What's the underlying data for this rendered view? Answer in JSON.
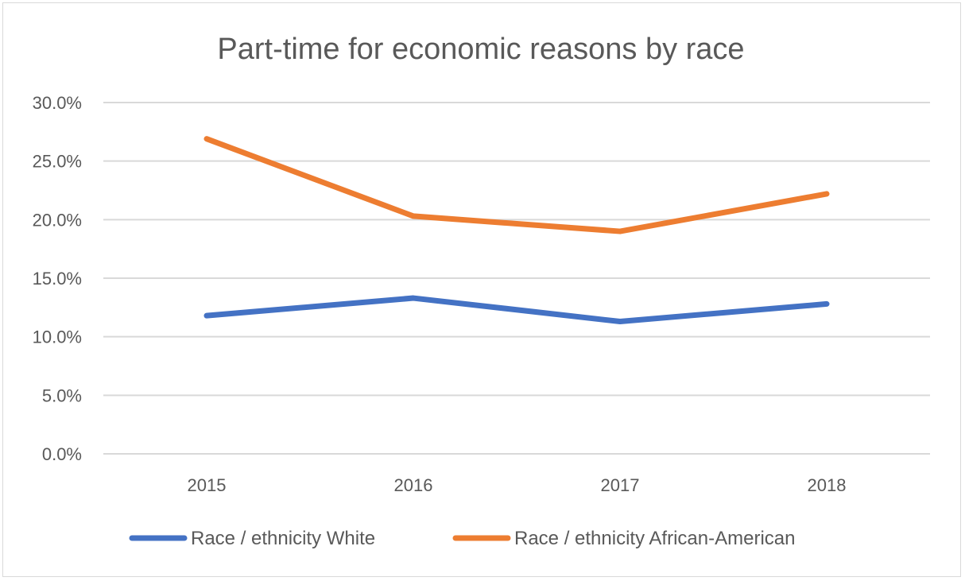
{
  "chart_data": {
    "type": "line",
    "title": "Part-time for economic reasons by race",
    "xlabel": "",
    "ylabel": "",
    "categories": [
      "2015",
      "2016",
      "2017",
      "2018"
    ],
    "ylim": [
      0,
      30
    ],
    "yticks": [
      0,
      5,
      10,
      15,
      20,
      25,
      30
    ],
    "ytick_labels": [
      "0.0%",
      "5.0%",
      "10.0%",
      "15.0%",
      "20.0%",
      "25.0%",
      "30.0%"
    ],
    "grid": true,
    "legend_position": "bottom",
    "series": [
      {
        "name": "Race / ethnicity White",
        "color": "#4472c4",
        "values": [
          11.8,
          13.3,
          11.3,
          12.8
        ]
      },
      {
        "name": "Race / ethnicity African-American",
        "color": "#ed7d31",
        "values": [
          26.9,
          20.3,
          19.0,
          22.2
        ]
      }
    ]
  }
}
